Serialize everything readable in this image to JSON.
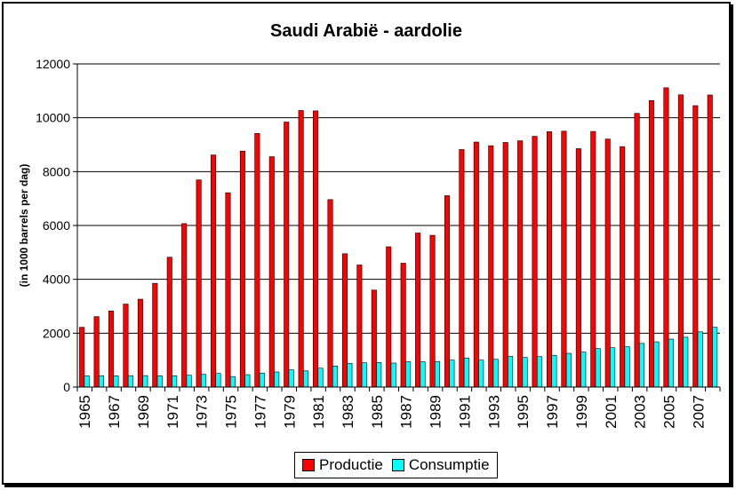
{
  "chart_data": {
    "type": "bar",
    "title": "Saudi Arabië - aardolie",
    "xlabel": "",
    "ylabel": "(in 1000 barrels per dag)",
    "ylim": [
      0,
      12000
    ],
    "yticks": [
      0,
      2000,
      4000,
      6000,
      8000,
      10000,
      12000
    ],
    "grid": true,
    "legend_position": "bottom",
    "categories": [
      "1965",
      "1966",
      "1967",
      "1968",
      "1969",
      "1970",
      "1971",
      "1972",
      "1973",
      "1974",
      "1975",
      "1976",
      "1977",
      "1978",
      "1979",
      "1980",
      "1981",
      "1982",
      "1983",
      "1984",
      "1985",
      "1986",
      "1987",
      "1988",
      "1989",
      "1990",
      "1991",
      "1992",
      "1993",
      "1994",
      "1995",
      "1996",
      "1997",
      "1998",
      "1999",
      "2000",
      "2001",
      "2002",
      "2003",
      "2004",
      "2005",
      "2006",
      "2007",
      "2008"
    ],
    "tick_labels": [
      "1965",
      "1967",
      "1969",
      "1971",
      "1973",
      "1975",
      "1977",
      "1979",
      "1981",
      "1983",
      "1985",
      "1987",
      "1989",
      "1991",
      "1993",
      "1995",
      "1997",
      "1999",
      "2001",
      "2003",
      "2005",
      "2007"
    ],
    "series": [
      {
        "name": "Productie",
        "color": "#ff0000",
        "values": [
          2219,
          2615,
          2825,
          3081,
          3262,
          3851,
          4821,
          6070,
          7693,
          8618,
          7216,
          8762,
          9419,
          8554,
          9841,
          10270,
          10256,
          6961,
          4951,
          4534,
          3601,
          5208,
          4599,
          5720,
          5635,
          7106,
          8820,
          9098,
          8962,
          9084,
          9145,
          9311,
          9482,
          9502,
          8853,
          9491,
          9209,
          8928,
          10164,
          10638,
          11114,
          10853,
          10449,
          10846
        ]
      },
      {
        "name": "Consumptie",
        "color": "#00ffff",
        "values": [
          416,
          420,
          418,
          422,
          424,
          418,
          420,
          440,
          470,
          505,
          390,
          460,
          520,
          560,
          640,
          600,
          700,
          780,
          880,
          900,
          910,
          890,
          940,
          940,
          950,
          1000,
          1080,
          1000,
          1030,
          1140,
          1100,
          1130,
          1180,
          1250,
          1300,
          1430,
          1460,
          1500,
          1620,
          1680,
          1780,
          1850,
          2050,
          2220
        ]
      }
    ]
  }
}
